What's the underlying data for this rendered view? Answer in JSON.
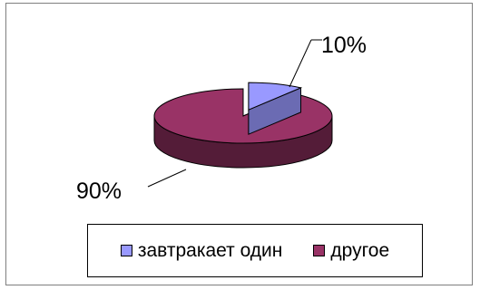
{
  "chart_data": {
    "type": "pie",
    "style": "3d",
    "title": "",
    "series": [
      {
        "categories": [
          "завтракает один",
          "другое"
        ],
        "values": [
          10,
          90
        ],
        "data_labels": [
          "10%",
          "90%"
        ],
        "colors": [
          "#9999ff",
          "#993366"
        ]
      }
    ],
    "legend_position": "bottom",
    "exploded_slice": "завтракает один"
  }
}
